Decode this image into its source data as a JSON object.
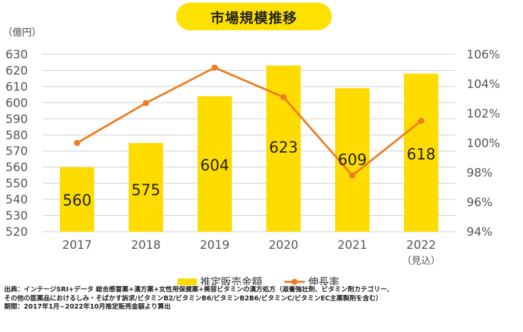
{
  "chart_data": {
    "type": "bar+line",
    "title": "市場規模推移",
    "y_left_label": "（億円）",
    "categories": [
      "2017",
      "2018",
      "2019",
      "2020",
      "2021",
      "2022"
    ],
    "category_sublabels": [
      "",
      "",
      "",
      "",
      "",
      "（見込）"
    ],
    "series": [
      {
        "name": "推定販売金額",
        "type": "bar",
        "axis": "left",
        "color": "#FFDC00",
        "values": [
          560,
          575,
          604,
          623,
          609,
          618
        ]
      },
      {
        "name": "伸長率",
        "type": "line",
        "axis": "right",
        "color": "#EE7D21",
        "values": [
          100.0,
          102.7,
          105.1,
          103.1,
          97.8,
          101.5
        ]
      }
    ],
    "y_left": {
      "min": 520,
      "max": 630,
      "step": 10
    },
    "y_right": {
      "min": 94,
      "max": 106,
      "step": 2,
      "suffix": "%"
    },
    "grid": true,
    "legend_position": "bottom"
  },
  "source_lines": [
    "出典：インテージSRI+データ 総合感冒薬+漢方薬+女性用保健薬+美容ビタミンの漢方処方（滋養強壮剤、ビタミン剤カテゴリー、",
    "その他の医薬品におけるしみ・そばかす訴求/ビタミンB2/ビタミンB6/ビタミンB2B6/ビタミンC/ビタミンEC主薬製剤を含む）",
    "期間：2017年1月~2022年10月推定販売金額より算出"
  ]
}
